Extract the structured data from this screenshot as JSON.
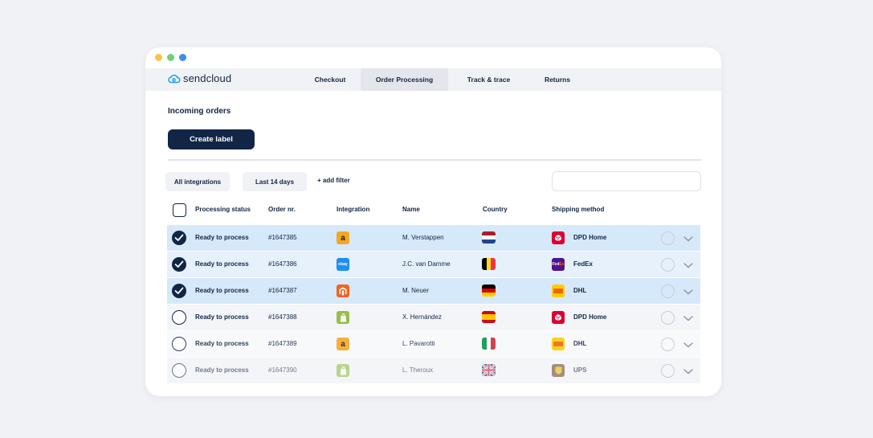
{
  "window": {
    "dot_colors": [
      "#f7c744",
      "#6ed27a",
      "#3d8ef0"
    ]
  },
  "brand": {
    "name": "sendcloud",
    "color": "#1f9be8"
  },
  "nav": {
    "tabs": [
      {
        "label": "Checkout",
        "active": false
      },
      {
        "label": "Order Processing",
        "active": true
      },
      {
        "label": "Track & trace",
        "active": false
      },
      {
        "label": "Returns",
        "active": false
      }
    ]
  },
  "page": {
    "title": "Incoming orders",
    "create_label": "Create label"
  },
  "filters": {
    "integrations": "All integrations",
    "period": "Last 14 days",
    "add_filter": "+ add filter",
    "search_placeholder": ""
  },
  "table": {
    "columns": [
      "Processing status",
      "Order nr.",
      "Integration",
      "Name",
      "Country",
      "Shipping method"
    ],
    "rows": [
      {
        "selected": true,
        "status": "Ready to process",
        "order": "#1647385",
        "integration": "amazon",
        "name": "M. Verstappen",
        "country": "Netherlands",
        "shipping": "DPD Home",
        "carrier": "dpd"
      },
      {
        "selected": true,
        "status": "Ready to process",
        "order": "#1647386",
        "integration": "ebay",
        "name": "J.C. van Damme",
        "country": "Belgium",
        "shipping": "FedEx",
        "carrier": "fedex"
      },
      {
        "selected": true,
        "status": "Ready to process",
        "order": "#1647387",
        "integration": "magento",
        "name": "M. Neuer",
        "country": "Germany",
        "shipping": "DHL",
        "carrier": "dhl"
      },
      {
        "selected": false,
        "status": "Ready to process",
        "order": "#1647388",
        "integration": "shopify",
        "name": "X. Hernández",
        "country": "Spain",
        "shipping": "DPD Home",
        "carrier": "dpd"
      },
      {
        "selected": false,
        "status": "Ready to process",
        "order": "#1647389",
        "integration": "amazon",
        "name": "L. Pavarotti",
        "country": "Italy",
        "shipping": "DHL",
        "carrier": "dhl"
      },
      {
        "selected": false,
        "status": "Ready to process",
        "order": "#1647390",
        "integration": "shopify",
        "name": "L. Theroux",
        "country": "United Kingdom",
        "shipping": "UPS",
        "carrier": "ups"
      }
    ]
  },
  "colors": {
    "navy": "#112545",
    "selected_row": "#d6e9fb",
    "selected_row_alt": "#e6f1fc",
    "unselected_row": "#f4f5f8"
  }
}
